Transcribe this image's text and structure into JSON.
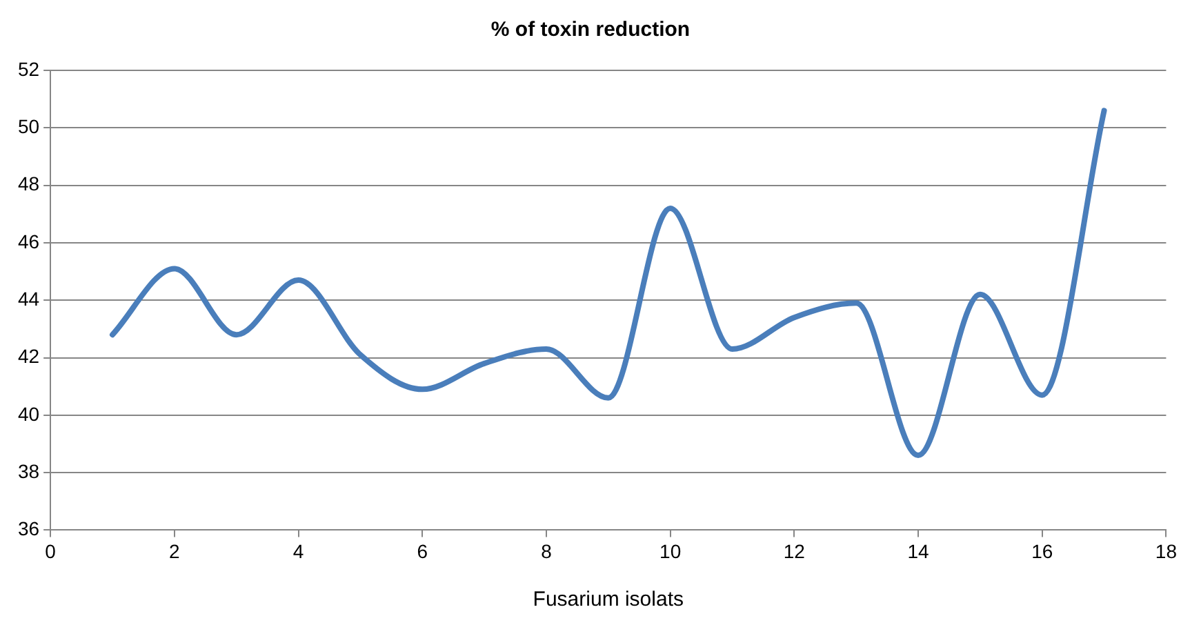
{
  "chart_data": {
    "type": "line",
    "title": "% of toxin reduction",
    "xlabel": "Fusarium isolats",
    "x": [
      1,
      2,
      3,
      4,
      5,
      6,
      7,
      8,
      9,
      10,
      11,
      12,
      13,
      14,
      15,
      16,
      17
    ],
    "series": [
      {
        "color": "#4a7ebb",
        "values": [
          42.8,
          45.1,
          42.8,
          44.7,
          42.1,
          40.9,
          41.8,
          42.3,
          40.6,
          47.2,
          42.3,
          43.4,
          43.9,
          38.6,
          44.2,
          40.7,
          50.6
        ]
      }
    ],
    "xlim": [
      0,
      18
    ],
    "xticks": [
      0,
      2,
      4,
      6,
      8,
      10,
      12,
      14,
      16,
      18
    ],
    "ylim": [
      36,
      52
    ],
    "yticks": [
      36,
      38,
      40,
      42,
      44,
      46,
      48,
      50,
      52
    ],
    "grid": "y",
    "legend": false,
    "marker": "none",
    "line_style": "solid"
  }
}
